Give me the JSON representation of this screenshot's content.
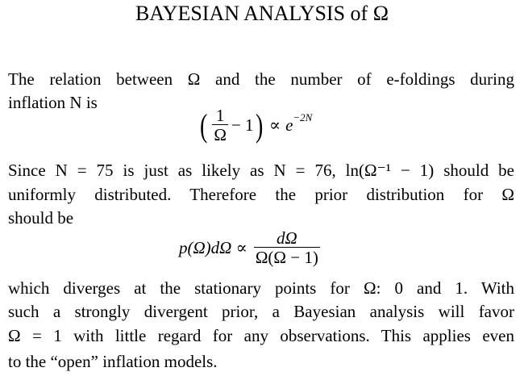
{
  "title": "BAYESIAN ANALYSIS of Ω",
  "para1": [
    "The relation between Ω and the number of e-foldings during",
    "inflation N is"
  ],
  "eq1": {
    "open": "(",
    "num": "1",
    "den": "Ω",
    "minus_one": "− 1",
    "close": ")",
    "prop": "∝",
    "base": "e",
    "exp": "−2N"
  },
  "para2": [
    "Since N = 75 is just as likely as N = 76, ln(Ω⁻¹ − 1) should be",
    "uniformly distributed. Therefore the prior distribution for Ω",
    "should be"
  ],
  "eq2": {
    "lhs": "p(Ω)dΩ ∝",
    "num": "dΩ",
    "den": "Ω(Ω − 1)"
  },
  "para3": [
    "which diverges at the stationary points for Ω: 0 and 1. With",
    "such a strongly divergent prior, a Bayesian analysis will favor",
    "Ω = 1 with little regard for any observations. This applies even",
    "to the “open” inflation models."
  ]
}
